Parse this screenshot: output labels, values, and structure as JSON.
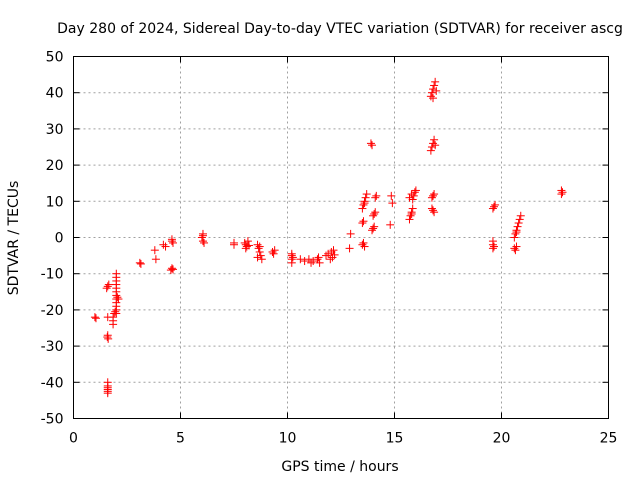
{
  "chart_data": {
    "type": "scatter",
    "title": "Day 280 of 2024, Sidereal Day-to-day VTEC variation (SDTVAR) for receiver ascg",
    "xlabel": "GPS time / hours",
    "ylabel": "SDTVAR / TECUs",
    "xlim": [
      0,
      25
    ],
    "ylim": [
      -50,
      50
    ],
    "xticks": [
      0,
      5,
      10,
      15,
      20,
      25
    ],
    "yticks": [
      -50,
      -40,
      -30,
      -20,
      -10,
      0,
      10,
      20,
      30,
      40,
      50
    ],
    "grid": true,
    "marker": "plus",
    "color": "#ff0000",
    "series": [
      {
        "name": "SDTVAR",
        "points": [
          [
            1.0,
            -22
          ],
          [
            1.05,
            -22.3
          ],
          [
            1.6,
            -13.5
          ],
          [
            1.65,
            -13
          ],
          [
            1.55,
            -14
          ],
          [
            1.6,
            -22
          ],
          [
            1.6,
            -27
          ],
          [
            1.62,
            -28
          ],
          [
            1.58,
            -27.5
          ],
          [
            1.6,
            -40
          ],
          [
            1.6,
            -41
          ],
          [
            1.6,
            -42
          ],
          [
            1.6,
            -43
          ],
          [
            1.6,
            -41.5
          ],
          [
            1.6,
            -42.5
          ],
          [
            1.85,
            -22
          ],
          [
            1.85,
            -23
          ],
          [
            1.85,
            -24
          ],
          [
            1.9,
            -21
          ],
          [
            2.0,
            -10
          ],
          [
            2.0,
            -11
          ],
          [
            2.0,
            -12
          ],
          [
            2.0,
            -13
          ],
          [
            2.0,
            -14
          ],
          [
            2.0,
            -15
          ],
          [
            2.0,
            -16
          ],
          [
            2.0,
            -17
          ],
          [
            2.0,
            -18
          ],
          [
            2.0,
            -19
          ],
          [
            2.0,
            -20
          ],
          [
            2.0,
            -21
          ],
          [
            2.05,
            -16.5
          ],
          [
            2.1,
            -17
          ],
          [
            1.95,
            -20.5
          ],
          [
            3.1,
            -7
          ],
          [
            3.15,
            -7.3
          ],
          [
            3.8,
            -3.5
          ],
          [
            3.85,
            -6
          ],
          [
            4.2,
            -2
          ],
          [
            4.3,
            -2.5
          ],
          [
            4.55,
            -9
          ],
          [
            4.6,
            -8.5
          ],
          [
            4.65,
            -8.8
          ],
          [
            4.6,
            -1
          ],
          [
            4.6,
            -0.5
          ],
          [
            4.65,
            -1.5
          ],
          [
            6.05,
            0.5
          ],
          [
            6.05,
            1
          ],
          [
            6.05,
            -1
          ],
          [
            6.1,
            -1.5
          ],
          [
            6.0,
            0
          ],
          [
            7.5,
            -1.5
          ],
          [
            7.5,
            -2
          ],
          [
            8.0,
            -1.5
          ],
          [
            8.05,
            -2
          ],
          [
            8.1,
            -2.5
          ],
          [
            8.15,
            -1
          ],
          [
            8.2,
            -2.2
          ],
          [
            8.05,
            -3
          ],
          [
            8.6,
            -2
          ],
          [
            8.65,
            -3
          ],
          [
            8.7,
            -4
          ],
          [
            8.75,
            -5
          ],
          [
            8.8,
            -6
          ],
          [
            8.7,
            -2.5
          ],
          [
            8.6,
            -5.5
          ],
          [
            9.3,
            -4
          ],
          [
            9.35,
            -4.5
          ],
          [
            9.4,
            -3.5
          ],
          [
            10.2,
            -5
          ],
          [
            10.2,
            -6
          ],
          [
            10.2,
            -7
          ],
          [
            10.25,
            -5.5
          ],
          [
            10.2,
            -4.5
          ],
          [
            10.6,
            -6
          ],
          [
            10.8,
            -6.5
          ],
          [
            11.0,
            -6
          ],
          [
            11.1,
            -7
          ],
          [
            11.2,
            -6.5
          ],
          [
            11.4,
            -6
          ],
          [
            11.5,
            -7
          ],
          [
            11.45,
            -5.5
          ],
          [
            11.8,
            -5
          ],
          [
            11.9,
            -4.5
          ],
          [
            12.0,
            -6
          ],
          [
            12.05,
            -4
          ],
          [
            12.1,
            -5.5
          ],
          [
            12.15,
            -3.5
          ],
          [
            12.2,
            -4.8
          ],
          [
            12.9,
            -3
          ],
          [
            12.95,
            1
          ],
          [
            13.5,
            -2
          ],
          [
            13.55,
            -1.5
          ],
          [
            13.6,
            -2.5
          ],
          [
            13.5,
            4
          ],
          [
            13.55,
            4.5
          ],
          [
            13.5,
            8
          ],
          [
            13.55,
            9
          ],
          [
            13.6,
            10
          ],
          [
            13.65,
            11
          ],
          [
            13.7,
            12
          ],
          [
            13.6,
            9.5
          ],
          [
            13.9,
            26
          ],
          [
            13.95,
            25.5
          ],
          [
            13.95,
            2
          ],
          [
            14.0,
            2.5
          ],
          [
            14.05,
            3
          ],
          [
            14.0,
            6
          ],
          [
            14.05,
            6.5
          ],
          [
            14.1,
            7
          ],
          [
            14.1,
            11
          ],
          [
            14.15,
            11.5
          ],
          [
            14.8,
            3.5
          ],
          [
            14.85,
            11.5
          ],
          [
            14.9,
            9.5
          ],
          [
            15.7,
            5
          ],
          [
            15.75,
            6
          ],
          [
            15.8,
            7
          ],
          [
            15.85,
            8
          ],
          [
            15.8,
            6.5
          ],
          [
            15.7,
            11
          ],
          [
            15.8,
            12
          ],
          [
            15.9,
            11.5
          ],
          [
            15.95,
            12.5
          ],
          [
            16.0,
            13
          ],
          [
            15.85,
            10.5
          ],
          [
            16.7,
            39
          ],
          [
            16.75,
            40
          ],
          [
            16.8,
            41
          ],
          [
            16.85,
            42
          ],
          [
            16.9,
            43
          ],
          [
            16.95,
            40.5
          ],
          [
            16.8,
            38.5
          ],
          [
            16.7,
            24
          ],
          [
            16.75,
            25
          ],
          [
            16.8,
            26
          ],
          [
            16.85,
            27
          ],
          [
            16.9,
            25.5
          ],
          [
            16.75,
            11
          ],
          [
            16.8,
            11.5
          ],
          [
            16.85,
            12
          ],
          [
            16.75,
            8
          ],
          [
            16.8,
            7.5
          ],
          [
            16.85,
            7
          ],
          [
            19.6,
            -1
          ],
          [
            19.6,
            -2
          ],
          [
            19.6,
            -3
          ],
          [
            19.65,
            -2.5
          ],
          [
            19.6,
            8
          ],
          [
            19.65,
            8.5
          ],
          [
            19.7,
            9
          ],
          [
            20.6,
            -3
          ],
          [
            20.65,
            -3.5
          ],
          [
            20.7,
            -2.5
          ],
          [
            20.6,
            0
          ],
          [
            20.65,
            1
          ],
          [
            20.7,
            2
          ],
          [
            20.75,
            3
          ],
          [
            20.8,
            4
          ],
          [
            20.85,
            5
          ],
          [
            20.9,
            6
          ],
          [
            20.7,
            1.5
          ],
          [
            22.8,
            12
          ],
          [
            22.85,
            12.5
          ],
          [
            22.8,
            13
          ]
        ]
      }
    ]
  }
}
